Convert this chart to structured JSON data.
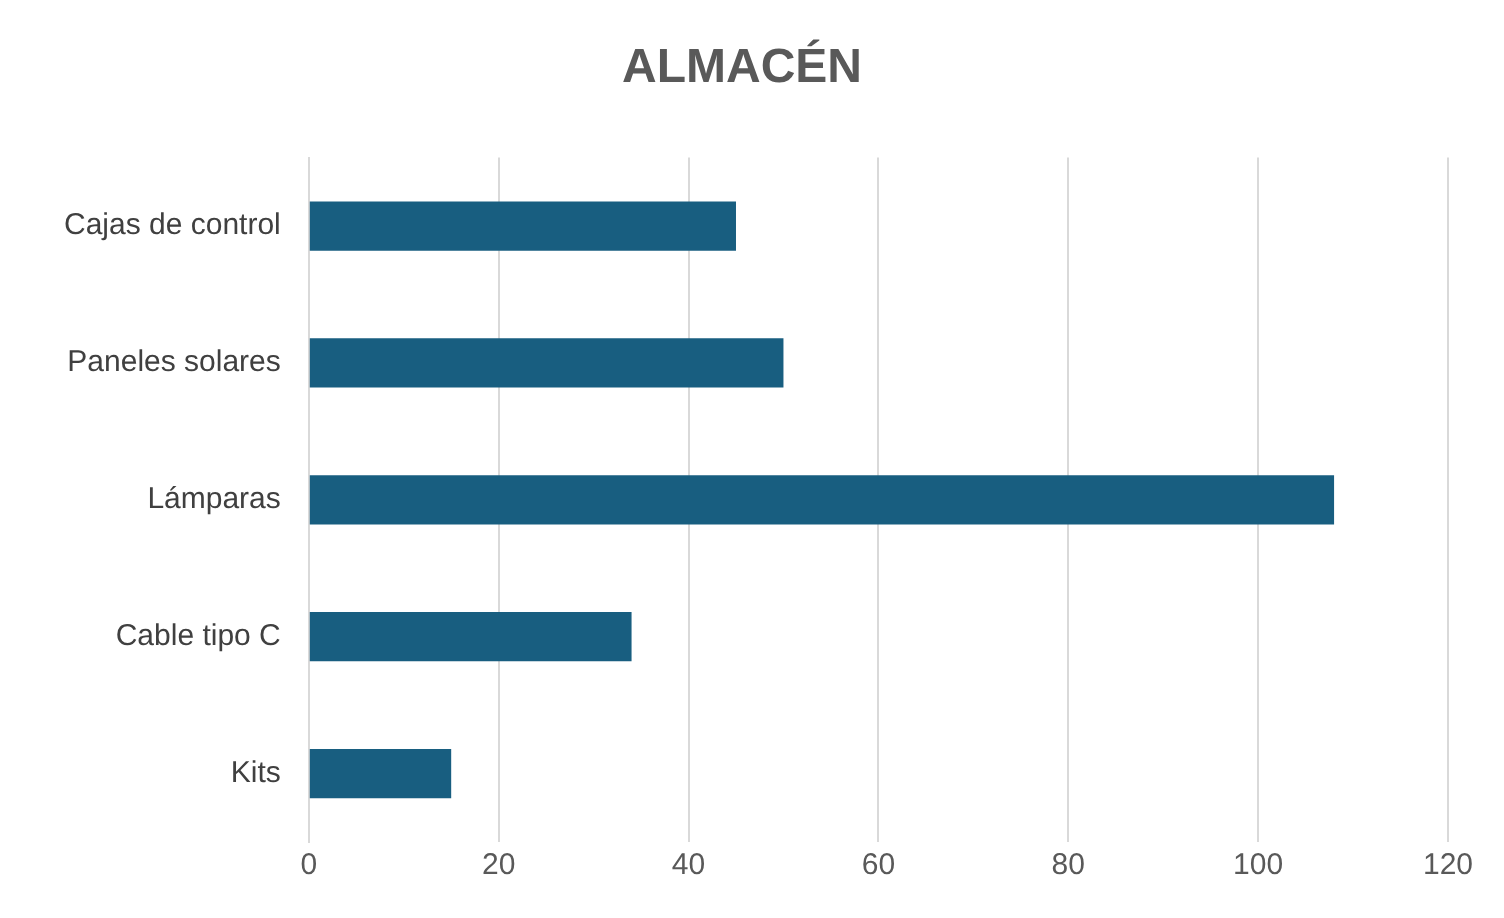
{
  "chart_data": {
    "type": "bar",
    "orientation": "horizontal",
    "title": "ALMACÉN",
    "categories": [
      "Cajas de control",
      "Paneles solares",
      "Lámparas",
      "Cable tipo C",
      "Kits"
    ],
    "values": [
      45,
      50,
      108,
      34,
      15
    ],
    "color": "#185e80",
    "xlim": [
      0,
      120
    ],
    "xticks": [
      0,
      20,
      40,
      60,
      80,
      100,
      120
    ],
    "grid": "x",
    "legend": false
  }
}
